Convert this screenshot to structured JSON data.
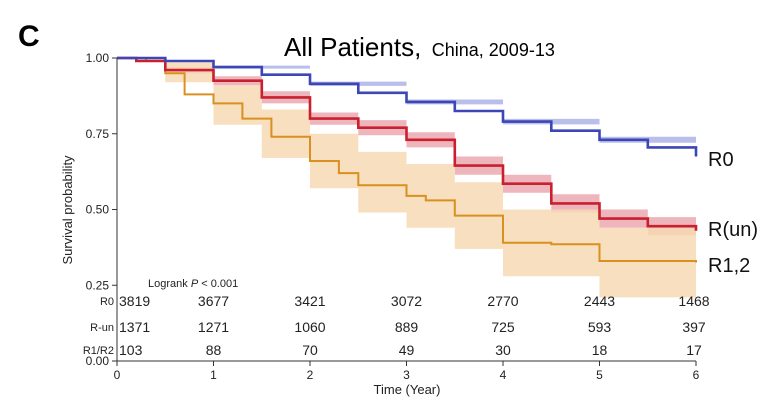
{
  "panel_letter": "C",
  "title": {
    "main": "All Patients,",
    "sub": "China, 2009-13"
  },
  "ylabel": "Survival probability",
  "xlabel": "Time (Year)",
  "logrank": {
    "prefix": "Logrank ",
    "p": "P",
    "suffix": " < 0.001"
  },
  "colors": {
    "R0": "#3c46b4",
    "Run": "#c8202f",
    "R12": "#d9901f",
    "band_R0": "#a7aee6",
    "band_Run": "#eba2ab",
    "band_R12": "#f6d9b4"
  },
  "chart_data": {
    "type": "line",
    "title": "All Patients, China, 2009-13",
    "xlabel": "Time (Year)",
    "ylabel": "Survival probability",
    "xlim": [
      0,
      6
    ],
    "ylim": [
      0.0,
      1.0
    ],
    "x_ticks": [
      "0",
      "1",
      "2",
      "3",
      "4",
      "5",
      "6"
    ],
    "y_ticks": [
      "0.00",
      "0.25",
      "0.50",
      "0.75",
      "1.00"
    ],
    "grid": false,
    "series": [
      {
        "name": "R0",
        "color": "#3c46b4",
        "points": [
          [
            0,
            1.0
          ],
          [
            0.5,
            0.99
          ],
          [
            1,
            0.97
          ],
          [
            1.5,
            0.945
          ],
          [
            2,
            0.915
          ],
          [
            2.5,
            0.885
          ],
          [
            3,
            0.855
          ],
          [
            3.5,
            0.825
          ],
          [
            4,
            0.79
          ],
          [
            4.5,
            0.76
          ],
          [
            5,
            0.73
          ],
          [
            5.5,
            0.705
          ],
          [
            6,
            0.675
          ]
        ],
        "ci": [
          [
            0,
            1.0,
            1.0
          ],
          [
            1,
            0.965,
            0.975
          ],
          [
            2,
            0.908,
            0.922
          ],
          [
            3,
            0.847,
            0.863
          ],
          [
            4,
            0.781,
            0.799
          ],
          [
            5,
            0.72,
            0.74
          ],
          [
            6,
            0.662,
            0.688
          ]
        ]
      },
      {
        "name": "R(un)",
        "color": "#c8202f",
        "points": [
          [
            0,
            1.0
          ],
          [
            0.2,
            0.99
          ],
          [
            0.5,
            0.96
          ],
          [
            1,
            0.925
          ],
          [
            1.5,
            0.87
          ],
          [
            2,
            0.8
          ],
          [
            2.5,
            0.77
          ],
          [
            3,
            0.73
          ],
          [
            3.5,
            0.645
          ],
          [
            4,
            0.585
          ],
          [
            4.5,
            0.52
          ],
          [
            5,
            0.47
          ],
          [
            5.5,
            0.445
          ],
          [
            6,
            0.43
          ]
        ],
        "ci": [
          [
            0,
            1.0,
            1.0
          ],
          [
            0.5,
            0.95,
            0.97
          ],
          [
            1,
            0.91,
            0.94
          ],
          [
            1.5,
            0.85,
            0.89
          ],
          [
            2,
            0.78,
            0.82
          ],
          [
            2.5,
            0.745,
            0.795
          ],
          [
            3,
            0.705,
            0.755
          ],
          [
            3.5,
            0.615,
            0.675
          ],
          [
            4,
            0.555,
            0.615
          ],
          [
            4.5,
            0.49,
            0.55
          ],
          [
            5,
            0.44,
            0.5
          ],
          [
            5.5,
            0.415,
            0.475
          ],
          [
            6,
            0.4,
            0.46
          ]
        ]
      },
      {
        "name": "R1,2",
        "color": "#d9901f",
        "points": [
          [
            0,
            1.0
          ],
          [
            0.3,
            0.99
          ],
          [
            0.5,
            0.95
          ],
          [
            0.7,
            0.88
          ],
          [
            1,
            0.85
          ],
          [
            1.3,
            0.8
          ],
          [
            1.6,
            0.74
          ],
          [
            2,
            0.66
          ],
          [
            2.3,
            0.62
          ],
          [
            2.5,
            0.58
          ],
          [
            3,
            0.545
          ],
          [
            3.2,
            0.53
          ],
          [
            3.5,
            0.48
          ],
          [
            4,
            0.39
          ],
          [
            4.5,
            0.385
          ],
          [
            5,
            0.33
          ],
          [
            6,
            0.325
          ]
        ],
        "ci": [
          [
            0,
            1.0,
            1.0
          ],
          [
            0.5,
            0.92,
            0.985
          ],
          [
            1,
            0.78,
            0.91
          ],
          [
            1.5,
            0.67,
            0.83
          ],
          [
            2,
            0.57,
            0.75
          ],
          [
            2.5,
            0.49,
            0.69
          ],
          [
            3,
            0.44,
            0.65
          ],
          [
            3.5,
            0.37,
            0.59
          ],
          [
            4,
            0.28,
            0.5
          ],
          [
            5,
            0.21,
            0.44
          ],
          [
            6,
            0.2,
            0.44
          ]
        ]
      }
    ],
    "risk_table": {
      "rows": [
        {
          "label": "R0",
          "values": [
            "3819",
            "3677",
            "3421",
            "3072",
            "2770",
            "2443",
            "1468"
          ]
        },
        {
          "label": "R-un",
          "values": [
            "1371",
            "1271",
            "1060",
            "889",
            "725",
            "593",
            "397"
          ]
        },
        {
          "label": "R1/R2",
          "values": [
            "103",
            "88",
            "70",
            "49",
            "30",
            "18",
            "17"
          ]
        }
      ]
    }
  }
}
